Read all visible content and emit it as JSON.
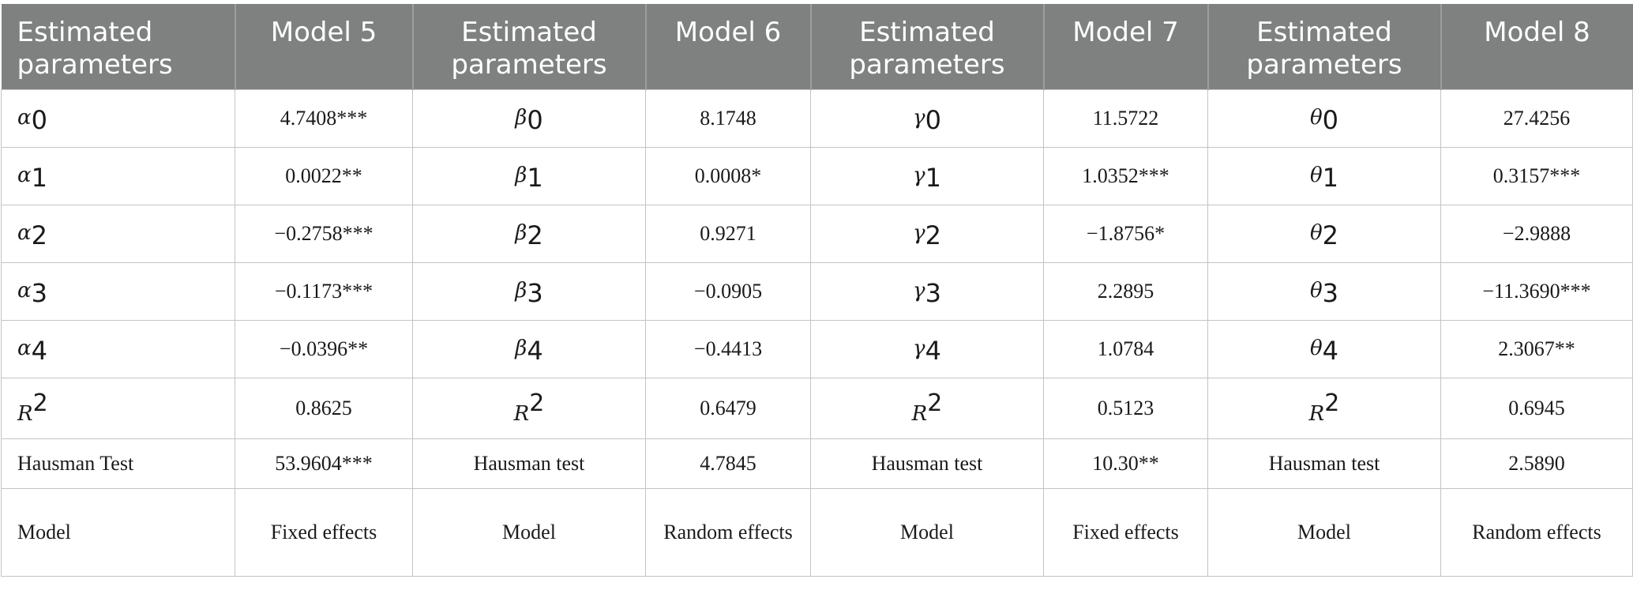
{
  "headers": [
    "Estimated parameters",
    "Model 5",
    "Estimated parameters",
    "Model 6",
    "Estimated parameters",
    "Model 7",
    "Estimated parameters",
    "Model 8"
  ],
  "coefficient_rows": [
    [
      {
        "symbol": "α",
        "sub": "0"
      },
      "4.7408***",
      {
        "symbol": "β",
        "sub": "0"
      },
      "8.1748",
      {
        "symbol": "γ",
        "sub": "0"
      },
      "11.5722",
      {
        "symbol": "θ",
        "sub": "0"
      },
      "27.4256"
    ],
    [
      {
        "symbol": "α",
        "sub": "1"
      },
      "0.0022**",
      {
        "symbol": "β",
        "sub": "1"
      },
      "0.0008*",
      {
        "symbol": "γ",
        "sub": "1"
      },
      "1.0352***",
      {
        "symbol": "θ",
        "sub": "1"
      },
      "0.3157***"
    ],
    [
      {
        "symbol": "α",
        "sub": "2"
      },
      "−0.2758***",
      {
        "symbol": "β",
        "sub": "2"
      },
      "0.9271",
      {
        "symbol": "γ",
        "sub": "2"
      },
      "−1.8756*",
      {
        "symbol": "θ",
        "sub": "2"
      },
      "−2.9888"
    ],
    [
      {
        "symbol": "α",
        "sub": "3"
      },
      "−0.1173***",
      {
        "symbol": "β",
        "sub": "3"
      },
      "−0.0905",
      {
        "symbol": "γ",
        "sub": "3"
      },
      "2.2895",
      {
        "symbol": "θ",
        "sub": "3"
      },
      "−11.3690***"
    ],
    [
      {
        "symbol": "α",
        "sub": "4"
      },
      "−0.0396**",
      {
        "symbol": "β",
        "sub": "4"
      },
      "−0.4413",
      {
        "symbol": "γ",
        "sub": "4"
      },
      "1.0784",
      {
        "symbol": "θ",
        "sub": "4"
      },
      "2.3067**"
    ]
  ],
  "r2_row": {
    "label_base": "R",
    "label_sup": "2",
    "values": [
      "0.8625",
      "0.6479",
      "0.5123",
      "0.6945"
    ]
  },
  "hausman_row": [
    "Hausman Test",
    "53.9604***",
    "Hausman test",
    "4.7845",
    "Hausman test",
    "10.30**",
    "Hausman test",
    "2.5890"
  ],
  "model_row": [
    "Model",
    "Fixed effects",
    "Model",
    "Random effects",
    "Model",
    "Fixed effects",
    "Model",
    "Random effects"
  ]
}
